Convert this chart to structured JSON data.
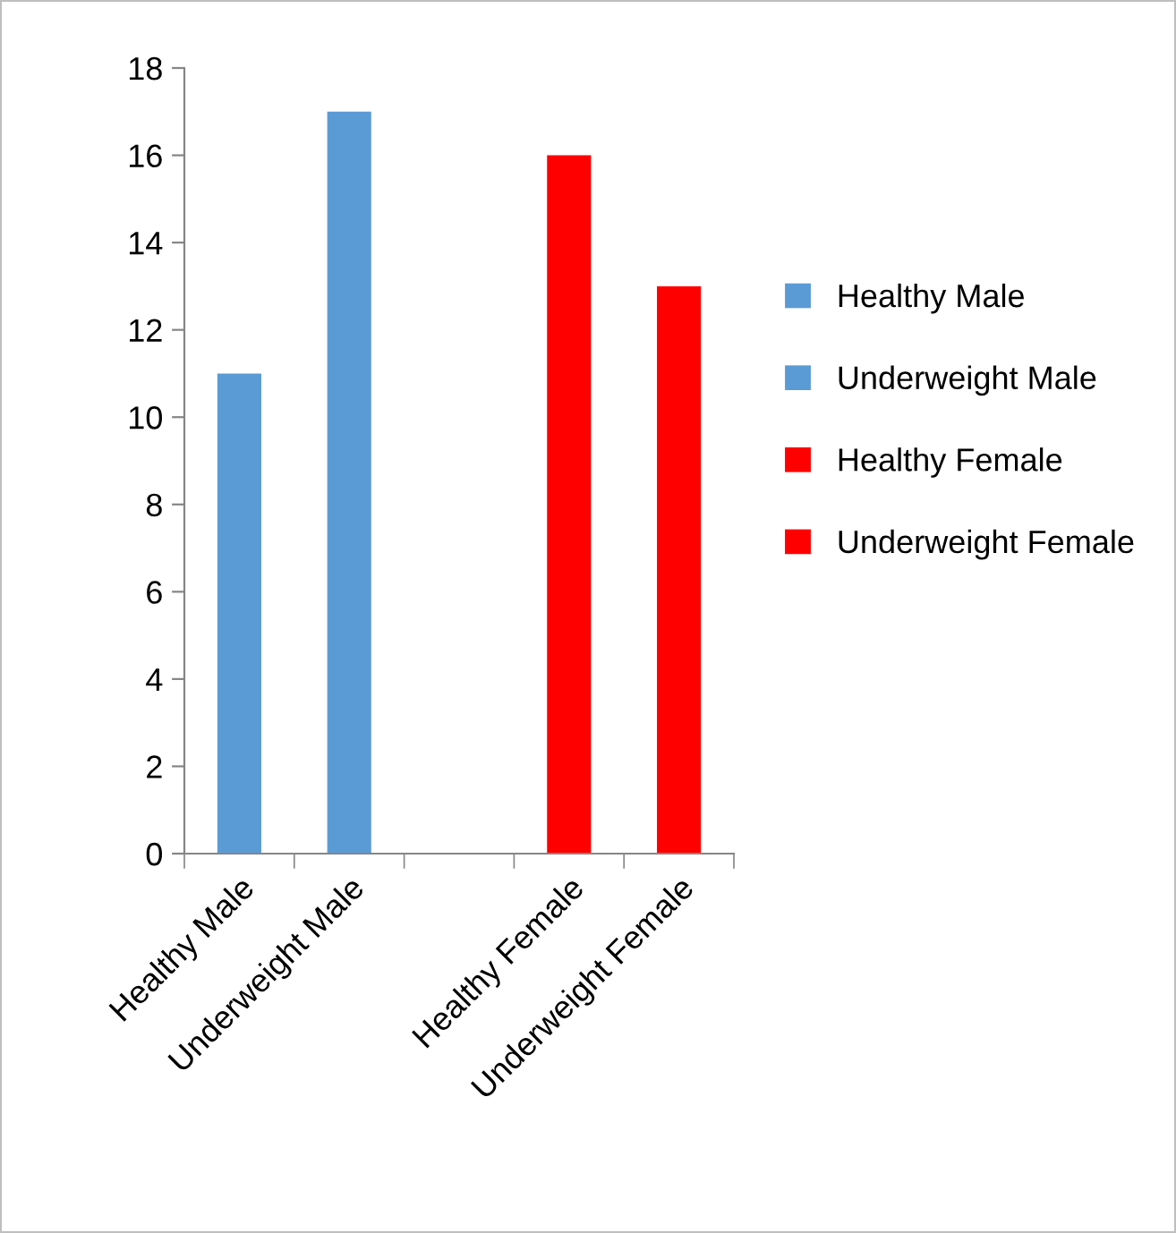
{
  "chart_data": {
    "type": "bar",
    "categories": [
      "Healthy Male",
      "Underweight Male",
      null,
      "Healthy Female",
      "Underweight Female"
    ],
    "series": [
      {
        "name": "Healthy Male",
        "color": "#5b9bd5",
        "values": [
          11,
          null,
          null,
          null,
          null
        ]
      },
      {
        "name": "Underweight Male",
        "color": "#5b9bd5",
        "values": [
          null,
          17,
          null,
          null,
          null
        ]
      },
      {
        "name": "Healthy Female",
        "color": "#ff0000",
        "values": [
          null,
          null,
          null,
          16,
          null
        ]
      },
      {
        "name": "Underweight Female",
        "color": "#ff0000",
        "values": [
          null,
          null,
          null,
          null,
          13
        ]
      }
    ],
    "ylim": [
      0,
      18
    ],
    "yticks": [
      0,
      2,
      4,
      6,
      8,
      10,
      12,
      14,
      16,
      18
    ],
    "grid": false,
    "legend": "right"
  }
}
